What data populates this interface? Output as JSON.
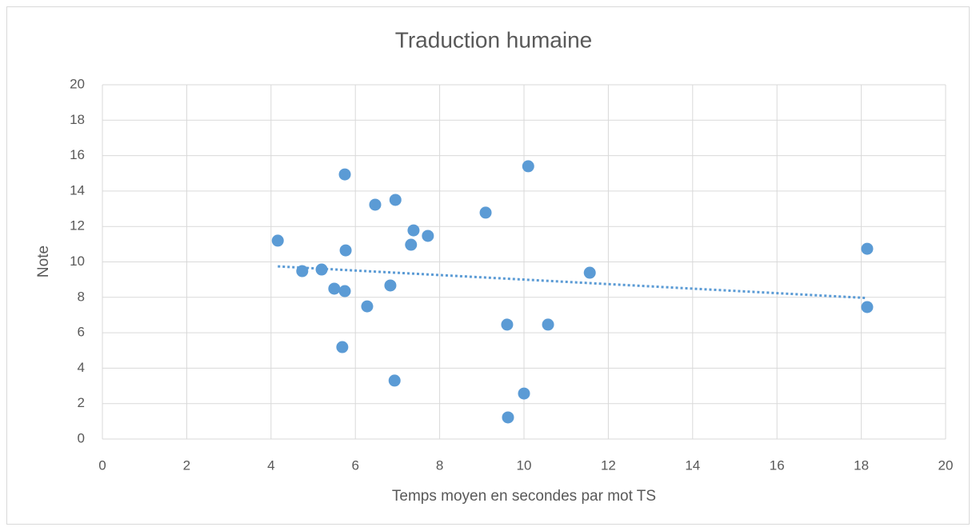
{
  "chart_data": {
    "type": "scatter",
    "title": "Traduction humaine",
    "xlabel": "Temps moyen en secondes par mot TS",
    "ylabel": "Note",
    "color": "#5b9bd5",
    "x": [
      4.16,
      4.74,
      5.2,
      5.5,
      5.75,
      5.75,
      5.77,
      5.69,
      6.28,
      6.47,
      6.83,
      6.95,
      6.93,
      7.32,
      7.38,
      7.72,
      9.09,
      9.6,
      9.62,
      10.0,
      10.1,
      10.57,
      11.56,
      18.14,
      18.14
    ],
    "values": [
      11.2,
      9.48,
      9.57,
      8.49,
      8.35,
      14.94,
      10.65,
      5.19,
      7.49,
      13.23,
      8.67,
      13.5,
      3.3,
      10.97,
      11.78,
      11.47,
      12.78,
      6.46,
      1.22,
      2.57,
      15.4,
      6.46,
      9.39,
      10.74,
      7.45
    ],
    "xlim": [
      0,
      20
    ],
    "xticks": [
      0,
      2,
      4,
      6,
      8,
      10,
      12,
      14,
      16,
      18,
      20
    ],
    "ylim": [
      0,
      20
    ],
    "yticks": [
      0,
      2,
      4,
      6,
      8,
      10,
      12,
      14,
      16,
      18,
      20
    ],
    "grid": true,
    "trendline": "linear"
  }
}
